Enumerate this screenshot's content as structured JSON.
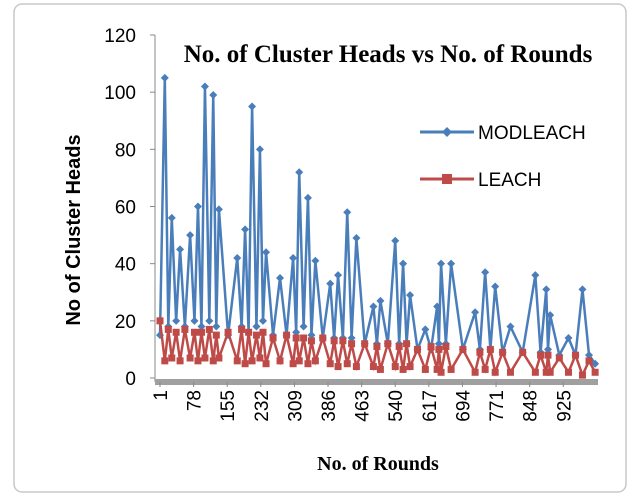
{
  "chart_data": {
    "type": "line",
    "title": "No. of Cluster Heads vs No. of Rounds",
    "x_label": "No. of Rounds",
    "y_label": "No of Cluster Heads",
    "x": [
      1,
      12,
      20,
      28,
      38,
      47,
      58,
      70,
      80,
      88,
      96,
      104,
      114,
      123,
      130,
      136,
      157,
      178,
      188,
      196,
      204,
      212,
      222,
      230,
      237,
      244,
      260,
      276,
      291,
      306,
      313,
      320,
      330,
      340,
      348,
      357,
      374,
      391,
      400,
      409,
      420,
      430,
      440,
      451,
      470,
      490,
      498,
      506,
      523,
      540,
      549,
      558,
      566,
      574,
      591,
      609,
      622,
      636,
      640,
      645,
      656,
      668,
      695,
      723,
      734,
      746,
      758,
      769,
      786,
      804,
      832,
      861,
      873,
      886,
      890,
      895,
      916,
      937,
      953,
      969,
      984,
      998
    ],
    "series": [
      {
        "name": "MODLEACH",
        "color": "#4a7ebb",
        "marker": "diamond",
        "values": [
          15,
          105,
          18,
          56,
          20,
          45,
          18,
          50,
          20,
          60,
          18,
          102,
          20,
          99,
          18,
          59,
          15,
          42,
          18,
          52,
          16,
          95,
          18,
          80,
          20,
          44,
          15,
          35,
          15,
          42,
          16,
          72,
          18,
          63,
          15,
          41,
          14,
          33,
          14,
          36,
          14,
          58,
          14,
          49,
          12,
          25,
          12,
          27,
          12,
          48,
          12,
          40,
          12,
          29,
          10,
          17,
          10,
          25,
          12,
          40,
          12,
          40,
          10,
          23,
          10,
          37,
          10,
          32,
          9,
          18,
          9,
          36,
          9,
          31,
          10,
          22,
          8,
          14,
          8,
          31,
          8,
          5
        ]
      },
      {
        "name": "LEACH",
        "color": "#be4b48",
        "marker": "square",
        "values": [
          20,
          6,
          17,
          7,
          16,
          6,
          17,
          7,
          16,
          6,
          16,
          7,
          17,
          6,
          15,
          7,
          16,
          6,
          17,
          5,
          16,
          6,
          15,
          7,
          16,
          5,
          14,
          6,
          15,
          5,
          14,
          6,
          14,
          5,
          13,
          6,
          14,
          5,
          13,
          4,
          13,
          5,
          12,
          4,
          12,
          4,
          11,
          3,
          12,
          4,
          11,
          3,
          12,
          4,
          10,
          3,
          11,
          3,
          10,
          2,
          11,
          3,
          10,
          2,
          9,
          3,
          10,
          2,
          9,
          2,
          9,
          2,
          8,
          2,
          8,
          2,
          7,
          2,
          8,
          1,
          6,
          2
        ]
      }
    ],
    "xlim": [
      1,
      1000
    ],
    "xticks": [
      1,
      78,
      155,
      232,
      309,
      386,
      463,
      540,
      617,
      694,
      771,
      848,
      925
    ],
    "ylim": [
      0,
      120
    ],
    "yticks": [
      0,
      20,
      40,
      60,
      80,
      100,
      120
    ],
    "legend": "upper right"
  }
}
